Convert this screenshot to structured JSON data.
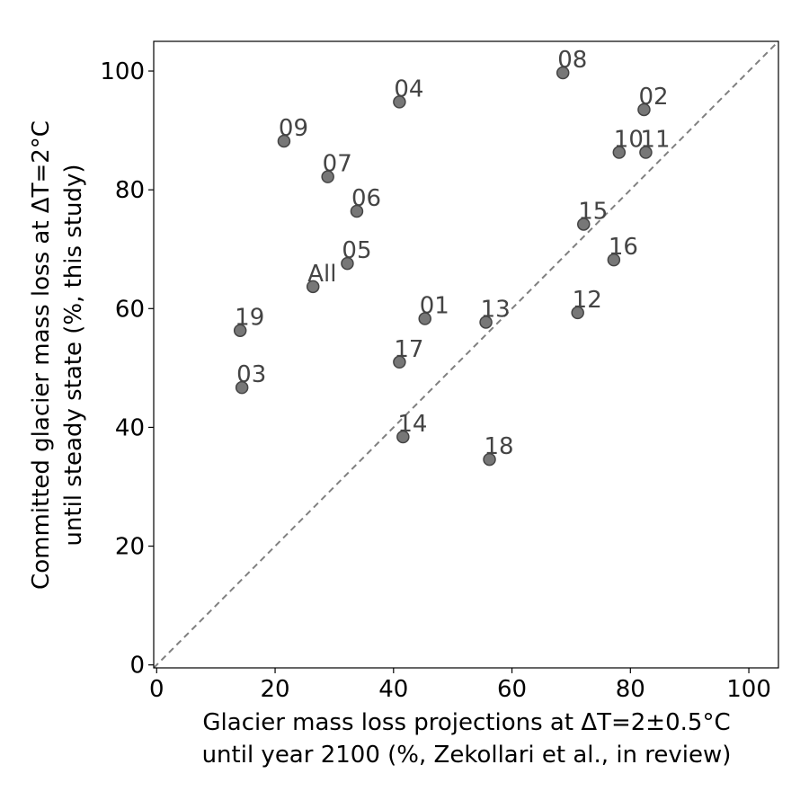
{
  "chart_data": {
    "type": "scatter",
    "xlabel": [
      "Glacier mass loss projections at ΔT=2±0.5°C",
      "until year 2100 (%, Zekollari et al., in review)"
    ],
    "ylabel": [
      "Committed glacier mass loss at ΔT=2°C",
      "until steady state (%, this study)"
    ],
    "xlim": [
      -0.5,
      105
    ],
    "ylim": [
      -0.5,
      105
    ],
    "xticks": [
      "0",
      "20",
      "40",
      "60",
      "80",
      "100"
    ],
    "yticks": [
      "0",
      "20",
      "40",
      "60",
      "80",
      "100"
    ],
    "grid": false,
    "reference_line": "y = x (dashed)",
    "points": [
      {
        "label": "01",
        "x": 45.3,
        "y": 58.3
      },
      {
        "label": "02",
        "x": 82.3,
        "y": 93.5
      },
      {
        "label": "03",
        "x": 14.4,
        "y": 46.7
      },
      {
        "label": "04",
        "x": 41.0,
        "y": 94.8
      },
      {
        "label": "05",
        "x": 32.2,
        "y": 67.6
      },
      {
        "label": "06",
        "x": 33.8,
        "y": 76.4
      },
      {
        "label": "07",
        "x": 28.9,
        "y": 82.2
      },
      {
        "label": "08",
        "x": 68.6,
        "y": 99.7
      },
      {
        "label": "09",
        "x": 21.5,
        "y": 88.2
      },
      {
        "label": "10",
        "x": 78.1,
        "y": 86.3
      },
      {
        "label": "11",
        "x": 82.6,
        "y": 86.3
      },
      {
        "label": "12",
        "x": 71.1,
        "y": 59.3
      },
      {
        "label": "13",
        "x": 55.6,
        "y": 57.7
      },
      {
        "label": "14",
        "x": 41.6,
        "y": 38.4
      },
      {
        "label": "15",
        "x": 72.1,
        "y": 74.2
      },
      {
        "label": "16",
        "x": 77.2,
        "y": 68.2
      },
      {
        "label": "17",
        "x": 41.0,
        "y": 51.0
      },
      {
        "label": "18",
        "x": 56.2,
        "y": 34.6
      },
      {
        "label": "19",
        "x": 14.1,
        "y": 56.3
      },
      {
        "label": "All",
        "x": 26.4,
        "y": 63.7
      }
    ],
    "colors": {
      "marker_fill": "#777777",
      "marker_edge": "#444444",
      "label_text": "#444444",
      "reference_line": "#808080"
    }
  }
}
